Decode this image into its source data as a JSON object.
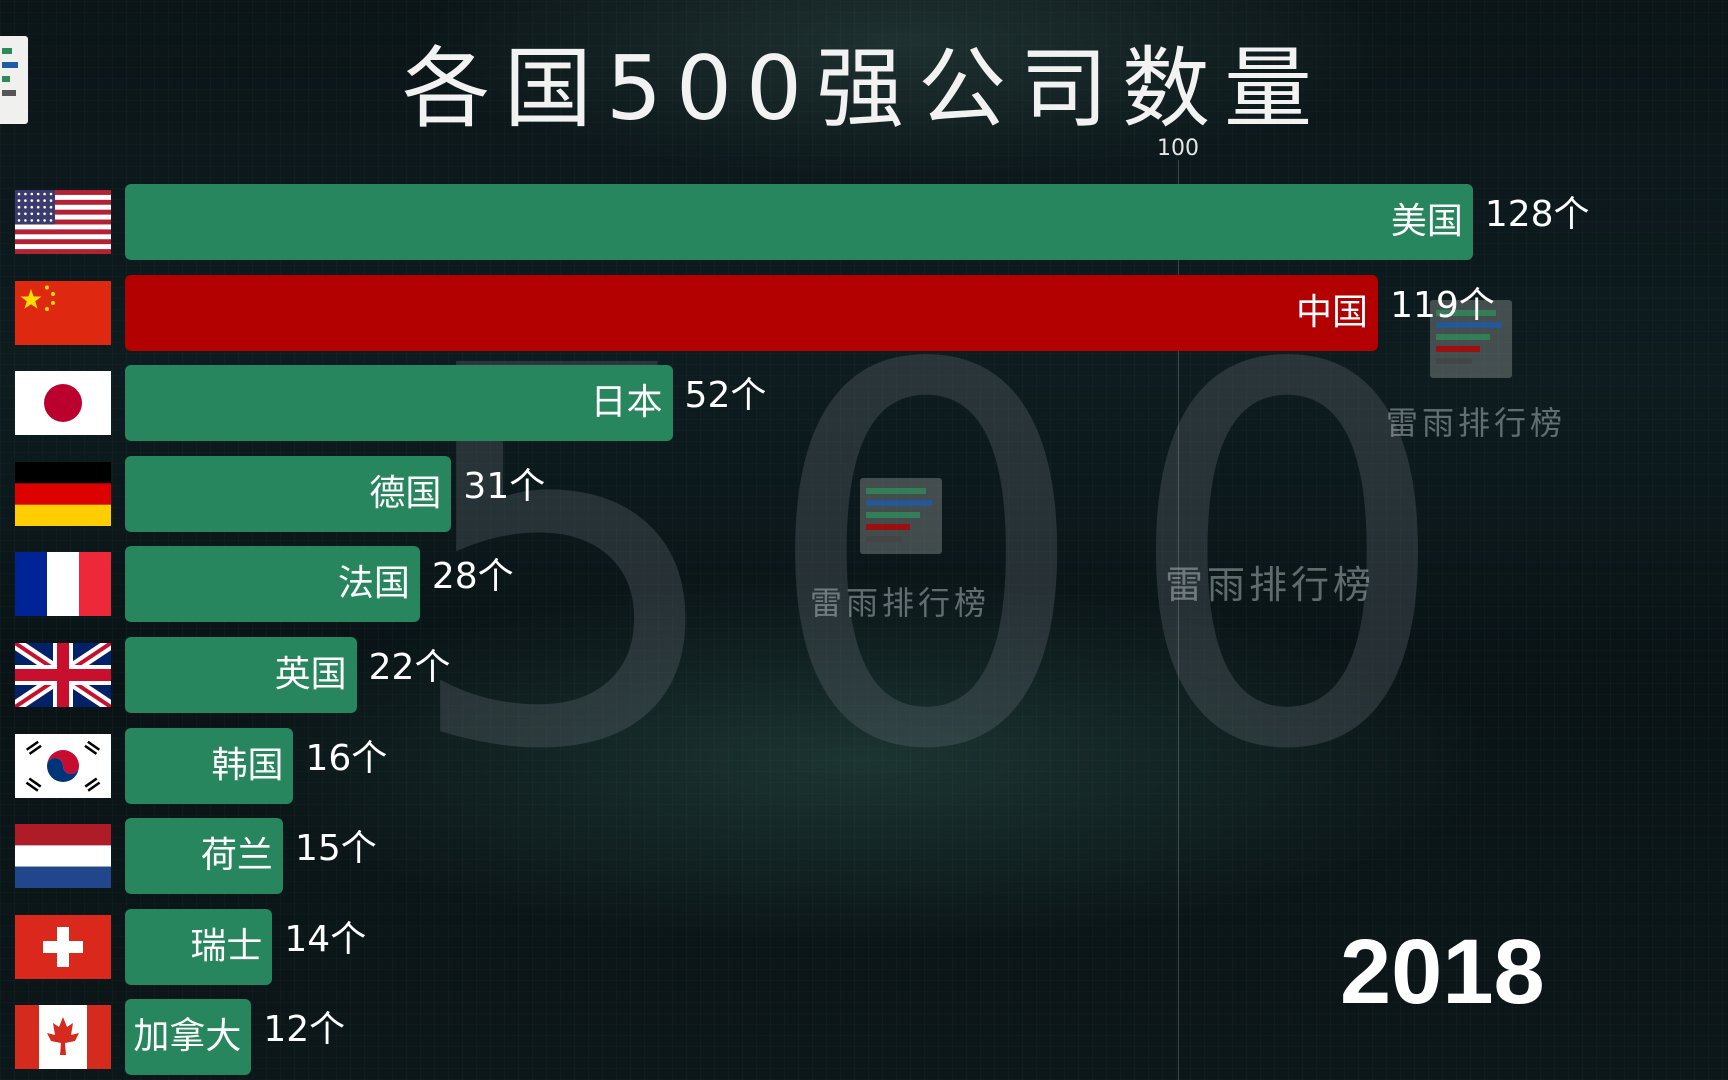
{
  "title": "各国500强公司数量",
  "year": "2018",
  "background_number": "500",
  "watermark": "雷雨排行榜",
  "colors": {
    "default_bar": "#27865e",
    "highlight_bar": "#b30000"
  },
  "chart_data": {
    "type": "bar",
    "orientation": "horizontal",
    "title": "各国500强公司数量",
    "categories": [
      "美国",
      "中国",
      "日本",
      "德国",
      "法国",
      "英国",
      "韩国",
      "荷兰",
      "瑞士",
      "加拿大"
    ],
    "values": [
      128,
      119,
      52,
      31,
      28,
      22,
      16,
      15,
      14,
      12
    ],
    "value_labels": [
      "128个",
      "119个",
      "52个",
      "31个",
      "28个",
      "22个",
      "16个",
      "15个",
      "14个",
      "12个"
    ],
    "flags": [
      "usa-flag",
      "china-flag",
      "japan-flag",
      "germany-flag",
      "france-flag",
      "uk-flag",
      "south-korea-flag",
      "netherlands-flag",
      "switzerland-flag",
      "canada-flag"
    ],
    "highlight_index": 1,
    "xticks": [
      100
    ],
    "xtick_labels": [
      "100"
    ],
    "xlim": [
      0,
      128
    ]
  }
}
